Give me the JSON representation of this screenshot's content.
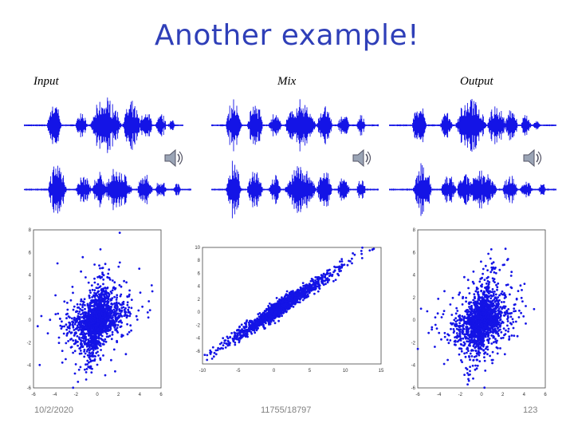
{
  "slide": {
    "title": "Another example!",
    "labels": {
      "input": "Input",
      "mix": "Mix",
      "output": "Output"
    },
    "footer": {
      "date": "10/2/2020",
      "course": "11755/18797",
      "page": "123"
    }
  },
  "colors": {
    "title": "#2f3fb8",
    "signal": "#1414e6",
    "axis": "#444444"
  },
  "icons": [
    "speaker-icon"
  ],
  "chart_data": [
    {
      "type": "scatter",
      "panel": "input",
      "xlim": [
        -6,
        6
      ],
      "ylim": [
        -6,
        8
      ],
      "xticks": [
        -6,
        -4,
        -2,
        0,
        2,
        4,
        6
      ],
      "yticks": [
        -6,
        -4,
        -2,
        0,
        2,
        4,
        6,
        8
      ],
      "description": "roughly symmetric cross-shaped cloud centered at origin"
    },
    {
      "type": "scatter",
      "panel": "mix",
      "xlim": [
        -10,
        15
      ],
      "ylim": [
        -8,
        10
      ],
      "xticks": [
        -10,
        -5,
        0,
        5,
        10,
        15
      ],
      "yticks": [
        -6,
        -4,
        -2,
        0,
        2,
        4,
        6,
        8,
        10
      ],
      "description": "elongated diagonal cloud, strong positive correlation"
    },
    {
      "type": "scatter",
      "panel": "output",
      "xlim": [
        -6,
        6
      ],
      "ylim": [
        -6,
        8
      ],
      "xticks": [
        -6,
        -4,
        -2,
        0,
        2,
        4,
        6
      ],
      "yticks": [
        -6,
        -4,
        -2,
        0,
        2,
        4,
        6,
        8
      ],
      "description": "roughly symmetric cross-shaped cloud centered at origin"
    }
  ]
}
